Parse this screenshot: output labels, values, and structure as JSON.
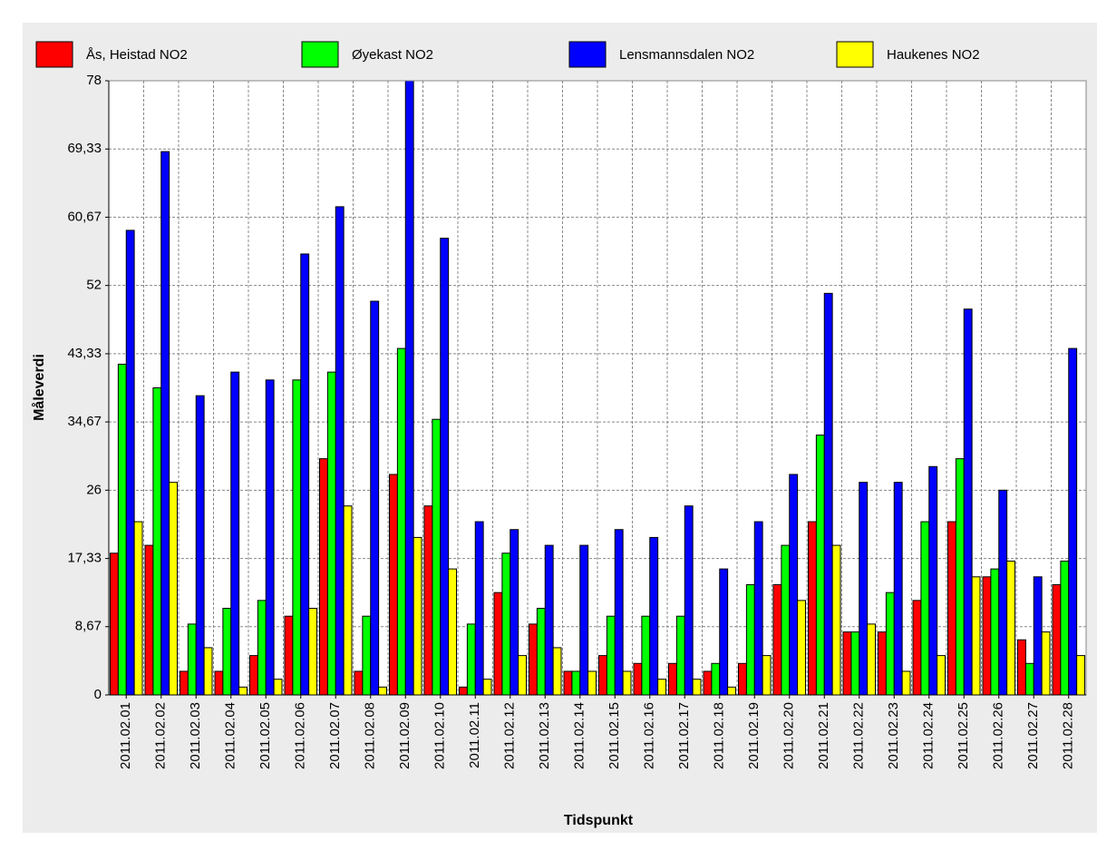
{
  "chart_data": {
    "type": "bar",
    "x_label": "Tidspunkt",
    "y_label": "Måleverdi",
    "categories": [
      "2011.02.01",
      "2011.02.02",
      "2011.02.03",
      "2011.02.04",
      "2011.02.05",
      "2011.02.06",
      "2011.02.07",
      "2011.02.08",
      "2011.02.09",
      "2011.02.10",
      "2011.02.11",
      "2011.02.12",
      "2011.02.13",
      "2011.02.14",
      "2011.02.15",
      "2011.02.16",
      "2011.02.17",
      "2011.02.18",
      "2011.02.19",
      "2011.02.20",
      "2011.02.21",
      "2011.02.22",
      "2011.02.23",
      "2011.02.24",
      "2011.02.25",
      "2011.02.26",
      "2011.02.27",
      "2011.02.28"
    ],
    "series": [
      {
        "name": "Ås, Heistad NO2",
        "color": "#ff0000",
        "values": [
          18,
          19,
          3,
          3,
          5,
          10,
          30,
          3,
          28,
          24,
          1,
          13,
          9,
          3,
          5,
          4,
          4,
          3,
          4,
          14,
          22,
          8,
          8,
          12,
          22,
          15,
          7,
          14
        ]
      },
      {
        "name": "Øyekast NO2",
        "color": "#00ff00",
        "values": [
          42,
          39,
          9,
          11,
          12,
          40,
          41,
          10,
          44,
          35,
          9,
          18,
          11,
          3,
          10,
          10,
          10,
          4,
          14,
          19,
          33,
          8,
          13,
          22,
          30,
          16,
          4,
          17
        ]
      },
      {
        "name": "Lensmannsdalen NO2",
        "color": "#0000ff",
        "values": [
          59,
          69,
          38,
          41,
          40,
          56,
          62,
          50,
          78,
          58,
          22,
          21,
          19,
          19,
          21,
          20,
          24,
          16,
          22,
          28,
          51,
          27,
          27,
          29,
          49,
          26,
          15,
          44
        ]
      },
      {
        "name": "Haukenes NO2",
        "color": "#ffff00",
        "values": [
          22,
          27,
          6,
          1,
          2,
          11,
          24,
          1,
          20,
          16,
          2,
          5,
          6,
          3,
          3,
          2,
          2,
          1,
          5,
          12,
          19,
          9,
          3,
          5,
          15,
          17,
          8,
          5
        ]
      }
    ],
    "ylim": [
      0,
      78
    ],
    "yticks": [
      0,
      {
        "value": 8.67,
        "label": "8,67"
      },
      {
        "value": 17.33,
        "label": "17,33"
      },
      26,
      {
        "value": 34.67,
        "label": "34,67"
      },
      {
        "value": 43.33,
        "label": "43,33"
      },
      52,
      {
        "value": 60.67,
        "label": "60,67"
      },
      {
        "value": 69.33,
        "label": "69,33"
      },
      78
    ],
    "grid": true
  }
}
